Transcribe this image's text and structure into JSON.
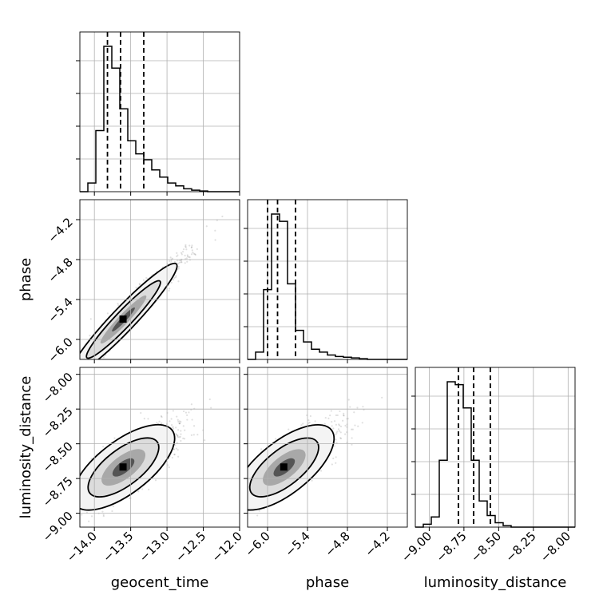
{
  "chart_data": {
    "type": "corner",
    "parameters": [
      {
        "label": "geocent_time",
        "range": [
          -14.2,
          -12.0
        ],
        "ticks": [
          -14.0,
          -13.5,
          -13.0,
          -12.5,
          -12.0
        ],
        "tick_labels": [
          "−14.0",
          "−13.5",
          "−13.0",
          "−12.5",
          "−12.0"
        ],
        "quantiles": [
          -13.82,
          -13.64,
          -13.32
        ],
        "hist": [
          0.0,
          0.06,
          0.42,
          1.0,
          0.85,
          0.57,
          0.35,
          0.26,
          0.22,
          0.15,
          0.1,
          0.06,
          0.04,
          0.02,
          0.01,
          0.005,
          0.0,
          0.0,
          0.0,
          0.0
        ]
      },
      {
        "label": "phase",
        "range": [
          -6.3,
          -3.9
        ],
        "ticks": [
          -6.0,
          -5.4,
          -4.8,
          -4.2
        ],
        "tick_labels": [
          "−6.0",
          "−5.4",
          "−4.8",
          "−4.2"
        ],
        "quantiles": [
          -6.0,
          -5.85,
          -5.58
        ],
        "hist": [
          0.0,
          0.05,
          0.48,
          1.0,
          0.95,
          0.52,
          0.2,
          0.12,
          0.07,
          0.05,
          0.03,
          0.02,
          0.015,
          0.01,
          0.005,
          0.0,
          0.0,
          0.0,
          0.0,
          0.0
        ]
      },
      {
        "label": "luminosity_distance",
        "range": [
          -9.1,
          -7.95
        ],
        "ticks": [
          -9.0,
          -8.75,
          -8.5,
          -8.25,
          -8.0
        ],
        "tick_labels": [
          "−9.00",
          "−8.75",
          "−8.50",
          "−8.25",
          "−8.00"
        ],
        "quantiles": [
          -8.79,
          -8.68,
          -8.56
        ],
        "hist": [
          0.0,
          0.02,
          0.07,
          0.46,
          1.0,
          0.98,
          0.82,
          0.46,
          0.18,
          0.08,
          0.03,
          0.01,
          0.0,
          0.0,
          0.0,
          0.0,
          0.0,
          0.0,
          0.0,
          0.0
        ]
      }
    ],
    "pairs": [
      {
        "x": 0,
        "y": 1,
        "mean": [
          -13.6,
          -5.7
        ],
        "sd": [
          0.35,
          0.4
        ],
        "rho": 0.97
      },
      {
        "x": 0,
        "y": 2,
        "mean": [
          -13.6,
          -8.67
        ],
        "sd": [
          0.33,
          0.14
        ],
        "rho": 0.78
      },
      {
        "x": 1,
        "y": 2,
        "mean": [
          -5.75,
          -8.67
        ],
        "sd": [
          0.35,
          0.14
        ],
        "rho": 0.78
      }
    ],
    "grid": true,
    "colors": {
      "line": "#000000",
      "grid": "#b0b0b0",
      "points": "#000000"
    }
  }
}
